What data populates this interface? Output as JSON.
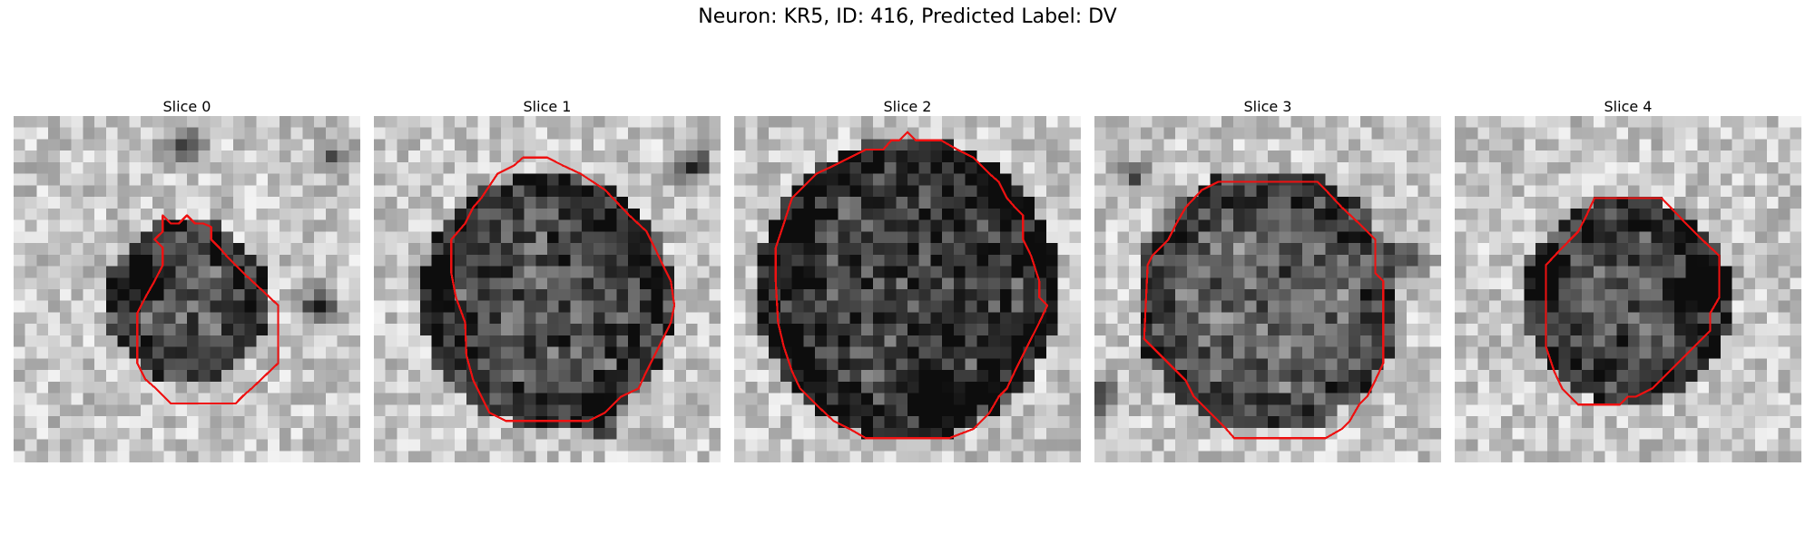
{
  "figure": {
    "suptitle": "Neuron: KR5, ID: 416, Predicted Label: DV",
    "colormap": "gray",
    "contour_color": "#ee1111",
    "grid_size": 30
  },
  "panels": [
    {
      "title": "Slice 0",
      "seed": 11,
      "blob": {
        "cx": 15.0,
        "cy": 16.0,
        "r": 5.5,
        "intensity": 0.55
      },
      "dark_spots": [
        [
          26,
          16,
          0.7
        ],
        [
          11,
          14,
          0.6
        ],
        [
          14,
          2,
          0.5
        ],
        [
          27,
          3,
          0.4
        ]
      ],
      "contour": [
        [
          12.9,
          8.6
        ],
        [
          13.6,
          9.3
        ],
        [
          14.3,
          9.3
        ],
        [
          15.0,
          8.6
        ],
        [
          15.7,
          9.3
        ],
        [
          16.4,
          9.3
        ],
        [
          17.1,
          9.6
        ],
        [
          17.1,
          10.7
        ],
        [
          17.8,
          11.4
        ],
        [
          18.5,
          12.2
        ],
        [
          19.2,
          12.9
        ],
        [
          19.9,
          13.6
        ],
        [
          22.9,
          16.4
        ],
        [
          22.9,
          21.4
        ],
        [
          20.7,
          23.5
        ],
        [
          19.9,
          24.2
        ],
        [
          19.2,
          24.9
        ],
        [
          13.6,
          24.9
        ],
        [
          12.9,
          24.2
        ],
        [
          12.2,
          23.5
        ],
        [
          11.4,
          22.8
        ],
        [
          10.7,
          21.4
        ],
        [
          10.7,
          17.1
        ],
        [
          11.4,
          15.7
        ],
        [
          12.2,
          14.3
        ],
        [
          12.9,
          12.9
        ],
        [
          12.9,
          11.4
        ],
        [
          12.2,
          10.7
        ],
        [
          12.9,
          10.0
        ]
      ]
    },
    {
      "title": "Slice 1",
      "seed": 23,
      "blob": {
        "cx": 15.0,
        "cy": 16.0,
        "r": 9.5,
        "intensity": 0.6
      },
      "dark_spots": [
        [
          19,
          26,
          0.8
        ],
        [
          27,
          4,
          0.6
        ],
        [
          5,
          13,
          0.3
        ]
      ],
      "contour": [
        [
          12.9,
          3.6
        ],
        [
          15.0,
          3.6
        ],
        [
          16.4,
          4.3
        ],
        [
          17.9,
          5.0
        ],
        [
          20.0,
          6.4
        ],
        [
          22.1,
          8.6
        ],
        [
          23.6,
          10.0
        ],
        [
          24.3,
          11.4
        ],
        [
          25.0,
          12.9
        ],
        [
          25.7,
          14.3
        ],
        [
          26.0,
          16.4
        ],
        [
          25.7,
          17.9
        ],
        [
          25.0,
          19.3
        ],
        [
          24.3,
          20.7
        ],
        [
          23.6,
          22.1
        ],
        [
          22.9,
          23.6
        ],
        [
          21.4,
          24.3
        ],
        [
          20.0,
          25.7
        ],
        [
          18.6,
          26.4
        ],
        [
          11.4,
          26.4
        ],
        [
          10.0,
          25.7
        ],
        [
          9.3,
          24.3
        ],
        [
          8.6,
          22.9
        ],
        [
          8.0,
          20.7
        ],
        [
          7.9,
          17.9
        ],
        [
          7.1,
          15.7
        ],
        [
          6.7,
          13.6
        ],
        [
          6.7,
          10.7
        ],
        [
          7.9,
          9.3
        ],
        [
          8.6,
          7.9
        ],
        [
          9.3,
          7.1
        ],
        [
          10.7,
          5.0
        ],
        [
          12.1,
          4.3
        ]
      ]
    },
    {
      "title": "Slice 2",
      "seed": 37,
      "blob": {
        "cx": 15.0,
        "cy": 15.0,
        "r": 11.5,
        "intensity": 0.7
      },
      "dark_spots": [
        [
          17,
          24,
          0.8
        ],
        [
          5,
          9,
          0.4
        ]
      ],
      "contour": [
        [
          14.3,
          2.1
        ],
        [
          15.0,
          1.4
        ],
        [
          15.7,
          2.1
        ],
        [
          17.9,
          2.1
        ],
        [
          19.3,
          2.9
        ],
        [
          20.7,
          3.6
        ],
        [
          22.1,
          5.0
        ],
        [
          22.9,
          5.7
        ],
        [
          23.6,
          7.1
        ],
        [
          24.3,
          7.9
        ],
        [
          25.0,
          8.6
        ],
        [
          25.0,
          10.7
        ],
        [
          25.7,
          12.1
        ],
        [
          26.4,
          14.3
        ],
        [
          26.4,
          15.7
        ],
        [
          27.1,
          16.4
        ],
        [
          26.4,
          17.9
        ],
        [
          25.7,
          19.3
        ],
        [
          25.0,
          20.7
        ],
        [
          24.3,
          22.1
        ],
        [
          23.6,
          23.6
        ],
        [
          22.9,
          24.3
        ],
        [
          22.1,
          25.7
        ],
        [
          20.7,
          27.1
        ],
        [
          18.6,
          27.9
        ],
        [
          11.4,
          27.9
        ],
        [
          10.0,
          27.1
        ],
        [
          8.6,
          26.4
        ],
        [
          7.1,
          25.0
        ],
        [
          5.7,
          23.6
        ],
        [
          5.0,
          22.1
        ],
        [
          4.3,
          20.0
        ],
        [
          3.8,
          17.9
        ],
        [
          3.6,
          14.3
        ],
        [
          3.6,
          11.4
        ],
        [
          4.3,
          9.3
        ],
        [
          5.0,
          7.1
        ],
        [
          5.7,
          6.4
        ],
        [
          7.1,
          5.0
        ],
        [
          8.6,
          4.3
        ],
        [
          10.0,
          3.6
        ],
        [
          11.4,
          2.9
        ],
        [
          12.9,
          2.9
        ],
        [
          13.6,
          2.1
        ]
      ]
    },
    {
      "title": "Slice 3",
      "seed": 53,
      "blob": {
        "cx": 15.0,
        "cy": 16.0,
        "r": 10.0,
        "intensity": 0.5
      },
      "dark_spots": [
        [
          0,
          24,
          0.6
        ],
        [
          27,
          12,
          0.5
        ],
        [
          3,
          5,
          0.4
        ]
      ],
      "contour": [
        [
          10.7,
          5.7
        ],
        [
          19.3,
          5.7
        ],
        [
          20.0,
          6.4
        ],
        [
          21.4,
          7.9
        ],
        [
          22.9,
          9.3
        ],
        [
          24.3,
          10.7
        ],
        [
          24.3,
          13.6
        ],
        [
          25.0,
          14.3
        ],
        [
          25.0,
          21.4
        ],
        [
          24.3,
          22.9
        ],
        [
          23.6,
          24.3
        ],
        [
          22.9,
          25.0
        ],
        [
          22.1,
          26.4
        ],
        [
          21.4,
          27.1
        ],
        [
          20.0,
          27.9
        ],
        [
          12.1,
          27.9
        ],
        [
          11.4,
          27.1
        ],
        [
          10.0,
          25.7
        ],
        [
          8.6,
          24.3
        ],
        [
          7.9,
          22.9
        ],
        [
          6.4,
          21.4
        ],
        [
          5.0,
          20.0
        ],
        [
          4.3,
          19.3
        ],
        [
          4.6,
          12.9
        ],
        [
          5.0,
          12.1
        ],
        [
          6.4,
          10.7
        ],
        [
          7.1,
          9.3
        ],
        [
          7.9,
          7.9
        ],
        [
          9.3,
          6.4
        ]
      ]
    },
    {
      "title": "Slice 4",
      "seed": 71,
      "blob": {
        "cx": 15.0,
        "cy": 16.0,
        "r": 7.5,
        "intensity": 0.6
      },
      "dark_spots": [
        [
          20,
          15,
          0.7
        ],
        [
          7,
          13,
          0.6
        ],
        [
          22,
          14,
          0.5
        ]
      ],
      "contour": [
        [
          12.1,
          7.1
        ],
        [
          17.9,
          7.1
        ],
        [
          20.0,
          9.3
        ],
        [
          21.4,
          10.7
        ],
        [
          22.9,
          12.1
        ],
        [
          22.9,
          15.7
        ],
        [
          22.1,
          17.1
        ],
        [
          22.1,
          18.6
        ],
        [
          21.4,
          19.3
        ],
        [
          20.0,
          20.7
        ],
        [
          18.6,
          22.1
        ],
        [
          17.1,
          23.6
        ],
        [
          15.7,
          24.3
        ],
        [
          15.0,
          24.3
        ],
        [
          14.3,
          25.0
        ],
        [
          10.7,
          25.0
        ],
        [
          9.3,
          23.6
        ],
        [
          8.6,
          22.1
        ],
        [
          7.9,
          20.0
        ],
        [
          7.9,
          12.9
        ],
        [
          9.3,
          11.4
        ],
        [
          10.7,
          10.0
        ],
        [
          11.4,
          8.6
        ]
      ]
    }
  ]
}
